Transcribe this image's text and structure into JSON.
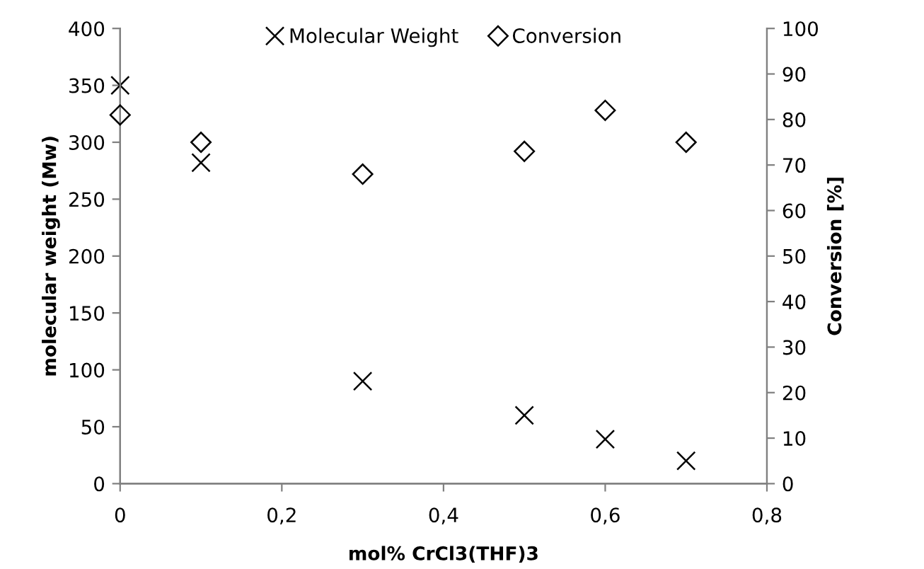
{
  "chart_data": {
    "type": "scatter",
    "xlabel": "mol% CrCl3(THF)3",
    "ylabel": "molecular weight (Mw)",
    "y2label": "Conversion [%]",
    "x": [
      0,
      0.1,
      0.3,
      0.5,
      0.6,
      0.7
    ],
    "series": [
      {
        "name": "Molecular Weight",
        "color": "#000000",
        "marker": "cross",
        "values": [
          350,
          282,
          90,
          60,
          39,
          20
        ]
      },
      {
        "name": "Conversion",
        "color": "#000000",
        "marker": "diamond",
        "axis": "y2",
        "values": [
          81,
          75,
          68,
          73,
          82,
          75
        ]
      }
    ],
    "xlim": [
      0,
      0.8
    ],
    "xticks": [
      0,
      {
        "value": 0.2,
        "label": "0,2"
      },
      {
        "value": 0.4,
        "label": "0,4"
      },
      {
        "value": 0.6,
        "label": "0,6"
      },
      {
        "value": 0.8,
        "label": "0,8"
      }
    ],
    "ylim": [
      0,
      400
    ],
    "yticks": [
      0,
      50,
      100,
      150,
      200,
      250,
      300,
      350,
      400
    ],
    "y2lim": [
      0,
      100
    ],
    "y2ticks": [
      0,
      10,
      20,
      30,
      40,
      50,
      60,
      70,
      80,
      90,
      100
    ],
    "grid": false,
    "legend": "top"
  }
}
